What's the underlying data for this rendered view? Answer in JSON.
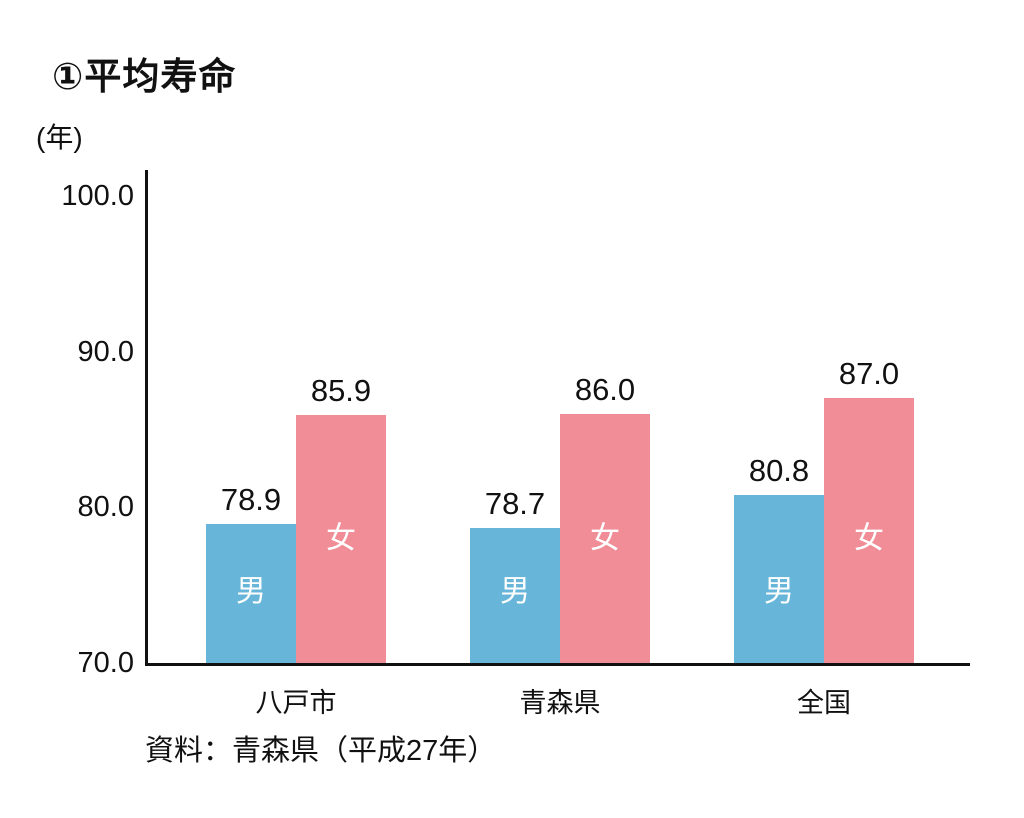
{
  "title": "①平均寿命",
  "unit_label": "(年)",
  "source_note": "資料：青森県（平成27年）",
  "colors": {
    "male_bar": "#68B5DA",
    "female_bar": "#F08D97",
    "axis": "#111111",
    "text": "#111111",
    "bar_inner_label": "#ffffff",
    "background": "#ffffff"
  },
  "chart_data": {
    "type": "bar",
    "title": "①平均寿命",
    "ylabel": "(年)",
    "categories": [
      "八戸市",
      "青森県",
      "全国"
    ],
    "series": [
      {
        "name": "男",
        "color": "#68B5DA",
        "values": [
          78.9,
          78.7,
          80.8
        ]
      },
      {
        "name": "女",
        "color": "#F08D97",
        "values": [
          85.9,
          86.0,
          87.0
        ]
      }
    ],
    "ylim": [
      70.0,
      100.0
    ],
    "yticks": [
      100.0,
      90.0,
      80.0,
      70.0
    ],
    "ytick_labels": [
      "100.0",
      "90.0",
      "80.0",
      "70.0"
    ],
    "grid": false,
    "legend_position": "inside-bars",
    "value_labels": true,
    "source": "資料：青森県（平成27年）"
  }
}
